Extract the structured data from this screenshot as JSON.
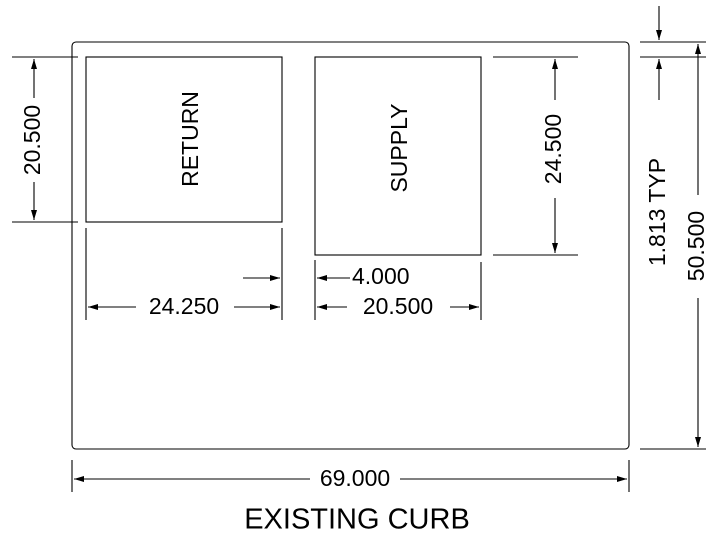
{
  "drawing": {
    "caption": "EXISTING CURB",
    "openings": {
      "return_label": "RETURN",
      "supply_label": "SUPPLY"
    },
    "dimensions": {
      "overall_width": "69.000",
      "overall_height": "50.500",
      "return_width": "24.250",
      "return_height": "20.500",
      "gap_between_openings": "4.000",
      "supply_width": "20.500",
      "supply_height": "24.500",
      "edge_offset": "1.813 TYP"
    }
  }
}
